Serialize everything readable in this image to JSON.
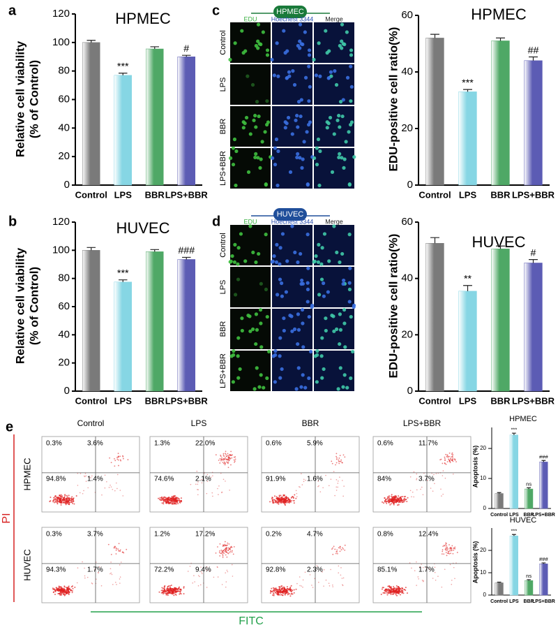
{
  "panel_labels": [
    "a",
    "b",
    "c",
    "d",
    "e"
  ],
  "chart_data": [
    {
      "type": "bar",
      "title": "HPMEC",
      "ylabel": [
        "Relative cell viability",
        "(% of Control)"
      ],
      "categories": [
        "Control",
        "LPS",
        "BBR",
        "LPS+BBR"
      ],
      "values": [
        100,
        77,
        95.5,
        90
      ],
      "errors": [
        1.5,
        1.5,
        1.5,
        1
      ],
      "annotations": [
        null,
        "***",
        null,
        "#"
      ],
      "colors": [
        "#7a7a7a",
        "#86d6e4",
        "#4fa866",
        "#5c5cb4"
      ],
      "ylim": [
        0,
        120
      ],
      "yticks": [
        0,
        20,
        40,
        60,
        80,
        100,
        120
      ]
    },
    {
      "type": "bar",
      "title": "HUVEC",
      "ylabel": [
        "Relative cell viability",
        "(% of Control)"
      ],
      "categories": [
        "Control",
        "LPS",
        "BBR",
        "LPS+BBR"
      ],
      "values": [
        100,
        77.5,
        99,
        93.5
      ],
      "errors": [
        2,
        1.5,
        1.5,
        1.5
      ],
      "annotations": [
        null,
        "***",
        null,
        "###"
      ],
      "colors": [
        "#7a7a7a",
        "#86d6e4",
        "#4fa866",
        "#5c5cb4"
      ],
      "ylim": [
        0,
        120
      ],
      "yticks": [
        0,
        20,
        40,
        60,
        80,
        100,
        120
      ]
    },
    {
      "type": "bar",
      "title": "HPMEC",
      "ylabel": [
        "EDU-positive cell ratio(%)"
      ],
      "categories": [
        "Control",
        "LPS",
        "BBR",
        "LPS+BBR"
      ],
      "values": [
        52,
        33,
        51,
        44
      ],
      "errors": [
        1.3,
        0.8,
        1,
        1.3
      ],
      "annotations": [
        null,
        "***",
        null,
        "##"
      ],
      "colors": [
        "#7a7a7a",
        "#86d6e4",
        "#4fa866",
        "#5c5cb4"
      ],
      "ylim": [
        0,
        60
      ],
      "yticks": [
        0,
        20,
        40,
        60
      ]
    },
    {
      "type": "bar",
      "title": "HUVEC",
      "ylabel": [
        "EDU-positive cell ratio(%)"
      ],
      "categories": [
        "Control",
        "LPS",
        "BBR",
        "LPS+BBR"
      ],
      "values": [
        52.5,
        35.5,
        50.5,
        45.5
      ],
      "errors": [
        2,
        2,
        1,
        1.2
      ],
      "annotations": [
        null,
        "**",
        null,
        "#"
      ],
      "colors": [
        "#7a7a7a",
        "#86d6e4",
        "#4fa866",
        "#5c5cb4"
      ],
      "ylim": [
        0,
        60
      ],
      "yticks": [
        0,
        20,
        40,
        60
      ]
    },
    {
      "type": "bar",
      "title": "HPMEC",
      "ylabel": [
        "Apoptosis (%)"
      ],
      "categories": [
        "Control",
        "LPS",
        "BBR",
        "LPS+BBR"
      ],
      "values": [
        5,
        24.5,
        6.5,
        15.5
      ],
      "errors": [
        0.3,
        0.6,
        0.4,
        0.5
      ],
      "annotations": [
        null,
        "***",
        "ns",
        "###"
      ],
      "colors": [
        "#7a7a7a",
        "#86d6e4",
        "#4fa866",
        "#5c5cb4"
      ],
      "ylim": [
        0,
        27
      ],
      "yticks": [
        0,
        10,
        20
      ]
    },
    {
      "type": "bar",
      "title": "HUVEC",
      "ylabel": [
        "Apoptosis (%)"
      ],
      "categories": [
        "Control",
        "LPS",
        "BBR",
        "LPS+BBR"
      ],
      "values": [
        5.5,
        26.5,
        6.5,
        14
      ],
      "errors": [
        0.3,
        0.6,
        0.4,
        0.4
      ],
      "annotations": [
        null,
        "***",
        "ns",
        "###"
      ],
      "colors": [
        "#7a7a7a",
        "#86d6e4",
        "#4fa866",
        "#5c5cb4"
      ],
      "ylim": [
        0,
        30
      ],
      "yticks": [
        0,
        10,
        20
      ]
    }
  ],
  "microscopy": [
    {
      "title": "HPMEC",
      "columns": [
        "EDU",
        "Hoechest 3344",
        "Merge"
      ],
      "rows": [
        "Control",
        "LPS",
        "BBR",
        "LPS+BBR"
      ]
    },
    {
      "title": "HUVEC",
      "columns": [
        "EDU",
        "Hoechest 3344",
        "Merge"
      ],
      "rows": [
        "Control",
        "LPS",
        "BBR",
        "LPS+BBR"
      ]
    }
  ],
  "flow_cytometry": {
    "columns": [
      "Control",
      "LPS",
      "BBR",
      "LPS+BBR"
    ],
    "rows": [
      "HPMEC",
      "HUVEC"
    ],
    "y_label": "PI",
    "x_label": "FITC",
    "quadrants": [
      [
        [
          "0.3%",
          "3.6%",
          "94.8%",
          "1.4%"
        ],
        [
          "1.3%",
          "22.0%",
          "74.6%",
          "2.1%"
        ],
        [
          "0.6%",
          "5.9%",
          "91.9%",
          "1.6%"
        ],
        [
          "0.6%",
          "11.7%",
          "84%",
          "3.7%"
        ]
      ],
      [
        [
          "0.3%",
          "3.7%",
          "94.3%",
          "1.7%"
        ],
        [
          "1.2%",
          "17.2%",
          "72.2%",
          "9.4%"
        ],
        [
          "0.2%",
          "4.7%",
          "92.8%",
          "2.3%"
        ],
        [
          "0.8%",
          "12.4%",
          "85.1%",
          "1.7%"
        ]
      ]
    ]
  }
}
